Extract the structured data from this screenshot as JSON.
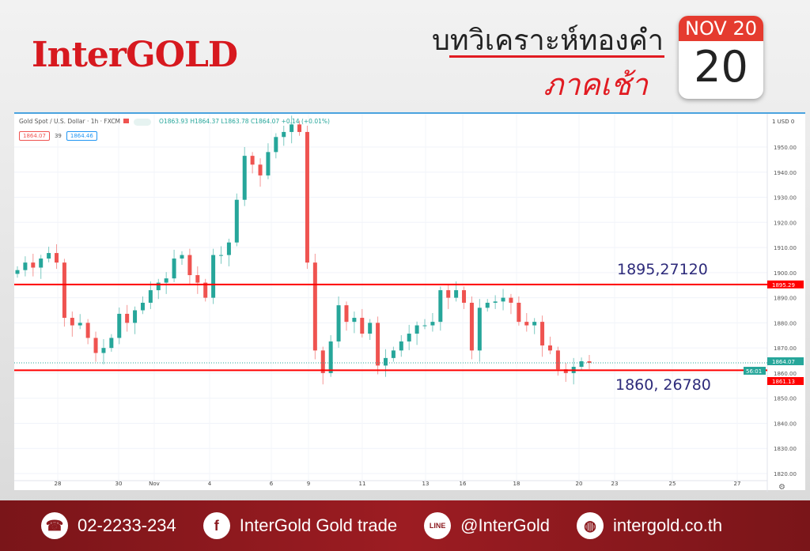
{
  "brand": {
    "logo": "InterGOLD",
    "title": "บทวิเคราะห์ทองคำ",
    "subtitle": "ภาคเช้า",
    "accent": "#e11b22"
  },
  "calendar": {
    "month_label": "NOV 20",
    "day": "20"
  },
  "chart_header": {
    "symbol": "Gold Spot / U.S. Dollar · 1h · FXCM",
    "ohlc": "O1863.93 H1864.37 L1863.78 C1864.07 +0.14 (+0.01%)",
    "bid": "1864.07",
    "spread": "39",
    "ask": "1864.46"
  },
  "chart_data": {
    "type": "candlestick",
    "ylim": [
      1817,
      1962
    ],
    "y_ticks": [
      "1950.00",
      "1940.00",
      "1930.00",
      "1920.00",
      "1910.00",
      "1900.00",
      "1890.00",
      "1880.00",
      "1870.00",
      "1860.00",
      "1850.00",
      "1840.00",
      "1830.00",
      "1820.00"
    ],
    "currency_label": "1 USD 0",
    "x_ticks": [
      "28",
      "30",
      "Nov",
      "4",
      "6",
      "9",
      "11",
      "13",
      "16",
      "18",
      "20",
      "23",
      "25",
      "27"
    ],
    "close": [
      1901,
      1904,
      1902,
      1905.6,
      1907.8,
      1904,
      1882,
      1879,
      1880,
      1874,
      1868,
      1870,
      1874,
      1883.6,
      1880,
      1885,
      1888,
      1893,
      1896,
      1897.7,
      1905.6,
      1907,
      1899,
      1896,
      1890,
      1907,
      1907,
      1912,
      1929,
      1946.5,
      1943,
      1938.7,
      1948,
      1954,
      1956,
      1959,
      1956,
      1904,
      1869,
      1860,
      1872.6,
      1887,
      1880.4,
      1882,
      1875.7,
      1880,
      1863,
      1866,
      1869,
      1872.6,
      1875.7,
      1879,
      1879,
      1880.4,
      1893,
      1890,
      1893,
      1888,
      1869,
      1886,
      1888,
      1888.5,
      1890,
      1888,
      1880.4,
      1879,
      1880.4,
      1871,
      1869,
      1861.5,
      1860,
      1862.5,
      1864.7,
      1864.07
    ],
    "levels": [
      {
        "value": 1895.29,
        "label": "1895,27120",
        "axis_label": "1895.29"
      },
      {
        "value": 1861.13,
        "label": "1860, 26780",
        "axis_label": "1861.13"
      }
    ],
    "last_price": "1864.07",
    "countdown": "56:01",
    "colors": {
      "up": "#26a69a",
      "down": "#ef5350",
      "level": "#ff0000"
    }
  },
  "footer": {
    "phone": "02-2233-234",
    "facebook": "InterGold Gold trade",
    "line": "@InterGold",
    "website": "intergold.co.th",
    "line_icon_text": "LINE"
  }
}
